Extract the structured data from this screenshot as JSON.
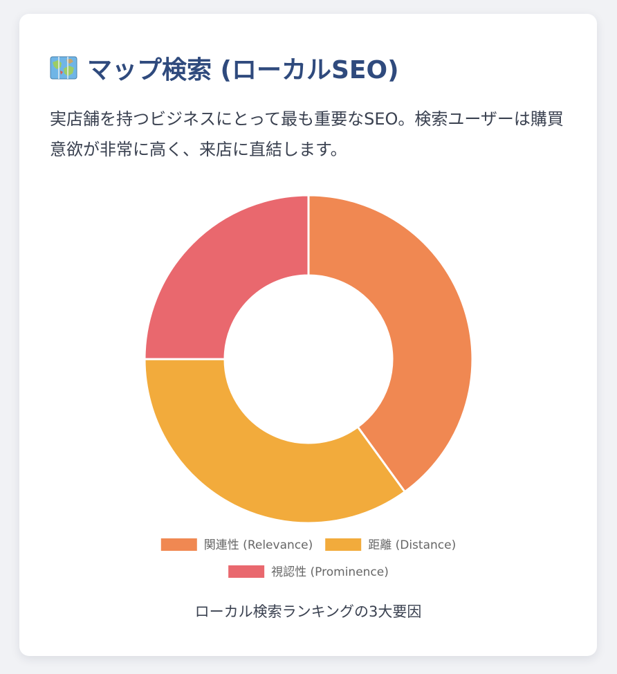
{
  "card": {
    "title_icon": "world-map-icon",
    "title": "マップ検索 (ローカルSEO)",
    "description": "実店舗を持つビジネスにとって最も重要なSEO。検索ユーザーは購買意欲が非常に高く、来店に直結します。"
  },
  "chart_data": {
    "type": "pie",
    "donut": true,
    "categories": [
      "関連性 (Relevance)",
      "距離 (Distance)",
      "視認性 (Prominence)"
    ],
    "values": [
      40,
      35,
      25
    ],
    "colors": [
      "#f08852",
      "#f2ab3c",
      "#e9686e"
    ],
    "legend_position": "bottom",
    "caption": "ローカル検索ランキングの3大要因"
  }
}
